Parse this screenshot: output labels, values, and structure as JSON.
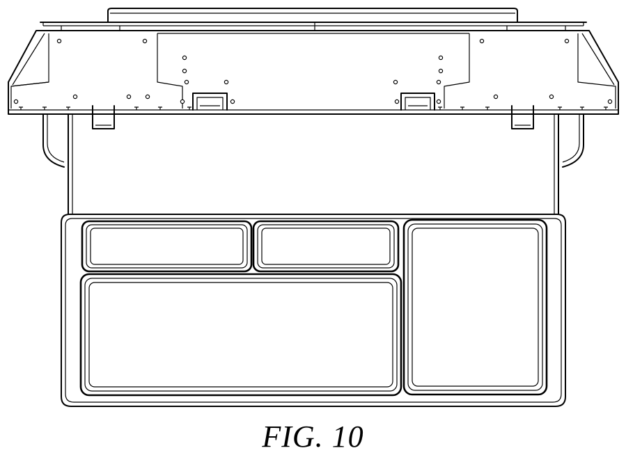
{
  "figure": {
    "label": "FIG. 10"
  }
}
